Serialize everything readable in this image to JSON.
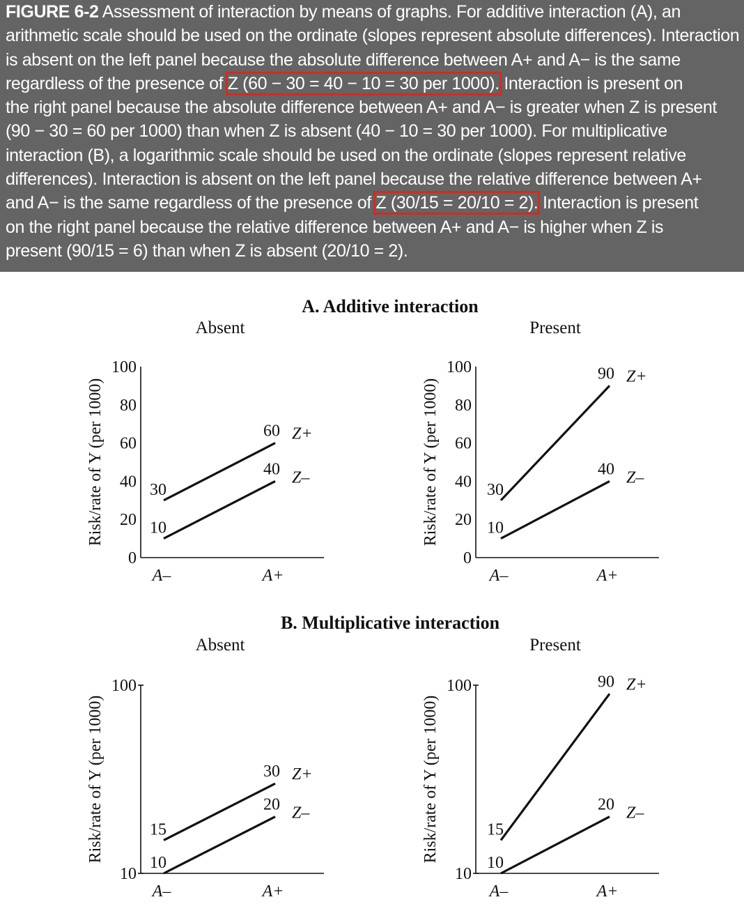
{
  "caption": {
    "label": "FIGURE 6-2",
    "lines": [
      [
        "Assessment of interaction by means of graphs. For additive interaction (A), an"
      ],
      [
        "arithmetic scale should be used on the ordinate (slopes represent absolute differences). Interaction"
      ],
      [
        "is absent on the left panel because the absolute difference between A+ and A− is the same"
      ],
      [
        "regardless of the presence of ",
        "Z (60 − 30 = 40 − 10 = 30 per 1000).",
        " Interaction is present on"
      ],
      [
        "the right panel because the absolute difference between A+ and A− is greater when Z is present"
      ],
      [
        "(90 − 30 = 60 per 1000) than when Z is absent (40 − 10 = 30 per 1000). For multiplicative"
      ],
      [
        "interaction (B), a logarithmic scale should be used on the ordinate (slopes represent relative"
      ],
      [
        "differences). Interaction is absent on the left panel because the relative difference between A+"
      ],
      [
        "and A− is the same regardless of the presence of ",
        "Z (30/15 = 20/10 = 2).",
        " Interaction is present"
      ],
      [
        "on the right panel because the relative difference between A+ and A− is higher when Z is"
      ],
      [
        "present (90/15 = 6) than when Z is absent (20/10 = 2)."
      ]
    ]
  },
  "colors": {
    "caption_bg": "#646464",
    "highlight": "#d42a20",
    "line": "#111111"
  },
  "figure": {
    "ylabel": "Risk/rate of Y (per 1000)",
    "xcats": [
      "A–",
      "A+"
    ],
    "absent_label": "Absent",
    "present_label": "Present"
  },
  "chart_data": [
    {
      "type": "line",
      "title": "A. Additive interaction",
      "subtitle": "Absent",
      "ylabel": "Risk/rate of Y (per 1000)",
      "scale": "linear",
      "ylim": [
        0,
        100
      ],
      "yticks": [
        "0",
        "20",
        "40",
        "60",
        "80",
        "100"
      ],
      "categories": [
        "A–",
        "A+"
      ],
      "series": [
        {
          "name": "Z+",
          "values": [
            30,
            60
          ],
          "value_labels": [
            "30",
            "60"
          ]
        },
        {
          "name": "Z–",
          "values": [
            10,
            40
          ],
          "value_labels": [
            "10",
            "40"
          ]
        }
      ]
    },
    {
      "type": "line",
      "title": "A. Additive interaction",
      "subtitle": "Present",
      "ylabel": "Risk/rate of Y (per 1000)",
      "scale": "linear",
      "ylim": [
        0,
        100
      ],
      "yticks": [
        "0",
        "20",
        "40",
        "60",
        "80",
        "100"
      ],
      "categories": [
        "A–",
        "A+"
      ],
      "series": [
        {
          "name": "Z+",
          "values": [
            30,
            90
          ],
          "value_labels": [
            "30",
            "90"
          ]
        },
        {
          "name": "Z–",
          "values": [
            10,
            40
          ],
          "value_labels": [
            "10",
            "40"
          ]
        }
      ]
    },
    {
      "type": "line",
      "title": "B. Multiplicative interaction",
      "subtitle": "Absent",
      "ylabel": "Risk/rate of Y (per 1000)",
      "scale": "log",
      "ylim": [
        10,
        100
      ],
      "yticks": [
        "10",
        "100"
      ],
      "categories": [
        "A–",
        "A+"
      ],
      "series": [
        {
          "name": "Z+",
          "values": [
            15,
            30
          ],
          "value_labels": [
            "15",
            "30"
          ]
        },
        {
          "name": "Z–",
          "values": [
            10,
            20
          ],
          "value_labels": [
            "10",
            "20"
          ]
        }
      ]
    },
    {
      "type": "line",
      "title": "B. Multiplicative interaction",
      "subtitle": "Present",
      "ylabel": "Risk/rate of Y (per 1000)",
      "scale": "log",
      "ylim": [
        10,
        100
      ],
      "yticks": [
        "10",
        "100"
      ],
      "categories": [
        "A–",
        "A+"
      ],
      "series": [
        {
          "name": "Z+",
          "values": [
            15,
            90
          ],
          "value_labels": [
            "15",
            "90"
          ]
        },
        {
          "name": "Z–",
          "values": [
            10,
            20
          ],
          "value_labels": [
            "10",
            "20"
          ]
        }
      ]
    }
  ]
}
